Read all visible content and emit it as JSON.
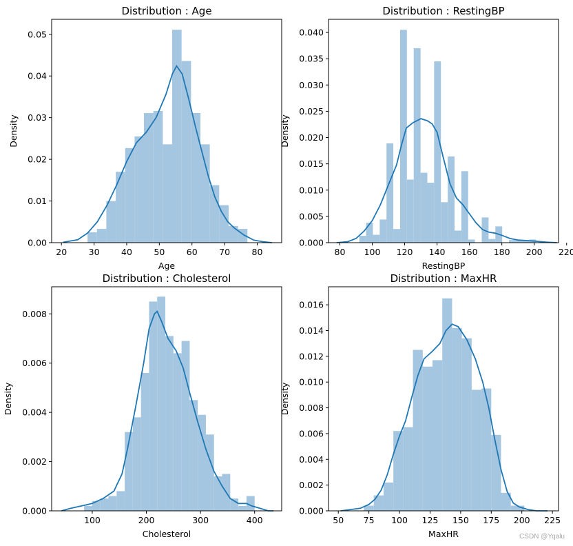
{
  "watermark": "CSDN @Yqalu",
  "colors": {
    "bar": "#a4c6e0",
    "kde": "#1f77b4"
  },
  "chart_data": [
    {
      "type": "bar",
      "title": "Distribution : Age",
      "xlabel": "Age",
      "ylabel": "Density",
      "xlim": [
        17,
        87.5
      ],
      "ylim": [
        0,
        0.0536
      ],
      "xticks": [
        20,
        30,
        40,
        50,
        60,
        70,
        80
      ],
      "yticks": [
        0.0,
        0.01,
        0.02,
        0.03,
        0.04,
        0.05
      ],
      "ytick_labels": [
        "0.00",
        "0.01",
        "0.02",
        "0.03",
        "0.04",
        "0.05"
      ],
      "bins": [
        28,
        30.88,
        33.76,
        36.65,
        39.53,
        42.41,
        45.29,
        48.18,
        51.06,
        53.94,
        56.82,
        59.71,
        62.59,
        65.47,
        68.35,
        71.24,
        74.12,
        77
      ],
      "values": [
        0.0025,
        0.0033,
        0.01,
        0.017,
        0.0227,
        0.0255,
        0.0311,
        0.0316,
        0.0236,
        0.0511,
        0.0436,
        0.0311,
        0.0236,
        0.0138,
        0.009,
        0.004,
        0.0033
      ],
      "kde": {
        "x": [
          20.5,
          25,
          28,
          31,
          34,
          37,
          40,
          43,
          46,
          49,
          52,
          54,
          55.3,
          57,
          59,
          61,
          63,
          65,
          67,
          69,
          71,
          73,
          76,
          79,
          82,
          84.5
        ],
        "y": [
          0.0001,
          0.0007,
          0.0023,
          0.005,
          0.009,
          0.014,
          0.0195,
          0.024,
          0.0265,
          0.03,
          0.0355,
          0.0405,
          0.0424,
          0.0405,
          0.0345,
          0.028,
          0.022,
          0.016,
          0.011,
          0.0075,
          0.005,
          0.0035,
          0.0018,
          0.0006,
          0.0002,
          0.0
        ]
      }
    },
    {
      "type": "bar",
      "title": "Distribution : RestingBP",
      "xlabel": "RestingBP",
      "ylabel": "Density",
      "xlim": [
        73,
        215
      ],
      "ylim": [
        0,
        0.0425
      ],
      "xticks": [
        80,
        100,
        120,
        140,
        160,
        180,
        200,
        220
      ],
      "yticks": [
        0.0,
        0.005,
        0.01,
        0.015,
        0.02,
        0.025,
        0.03,
        0.035,
        0.04
      ],
      "ytick_labels": [
        "0.000",
        "0.005",
        "0.010",
        "0.015",
        "0.020",
        "0.025",
        "0.030",
        "0.035",
        "0.040"
      ],
      "bins": [
        92,
        96.2,
        100.4,
        104.6,
        108.8,
        113,
        117.2,
        121.4,
        125.6,
        129.8,
        134,
        138.2,
        142.4,
        146.6,
        150.8,
        155,
        159.2,
        163.4,
        167.6,
        171.8,
        176,
        180.2,
        184.4,
        188.6,
        192.8,
        197,
        201.2
      ],
      "values": [
        0.0013,
        0.0038,
        0.0015,
        0.0044,
        0.0189,
        0.0026,
        0.0405,
        0.012,
        0.037,
        0.0133,
        0.0114,
        0.0345,
        0.0077,
        0.0164,
        0.0023,
        0.0136,
        0.0006,
        0.0,
        0.0048,
        0.0007,
        0.0031,
        0.0,
        0.0005,
        0.0005,
        0.0005,
        0.0006
      ],
      "kde": {
        "x": [
          78,
          85,
          90,
          95,
          100,
          105,
          110,
          115,
          118,
          121,
          125,
          130,
          134,
          137,
          140,
          144,
          148,
          152,
          156,
          160,
          164,
          168,
          172,
          176,
          180,
          185,
          190,
          195,
          200,
          207,
          214
        ],
        "y": [
          0.0,
          0.0002,
          0.0008,
          0.0022,
          0.0042,
          0.0072,
          0.011,
          0.0148,
          0.0185,
          0.0218,
          0.0228,
          0.0236,
          0.0232,
          0.0226,
          0.021,
          0.016,
          0.0112,
          0.0085,
          0.0072,
          0.0055,
          0.0038,
          0.0025,
          0.002,
          0.0018,
          0.0014,
          0.0008,
          0.0005,
          0.0004,
          0.0003,
          0.0001,
          0.0
        ]
      }
    },
    {
      "type": "bar",
      "title": "Distribution : Cholesterol",
      "xlabel": "Cholesterol",
      "ylabel": "Density",
      "xlim": [
        25,
        450
      ],
      "ylim": [
        0,
        0.0091
      ],
      "xticks": [
        100,
        200,
        300,
        400
      ],
      "yticks": [
        0.0,
        0.002,
        0.004,
        0.006,
        0.008
      ],
      "ytick_labels": [
        "0.000",
        "0.002",
        "0.004",
        "0.006",
        "0.008"
      ],
      "bins": [
        85,
        100,
        115,
        130,
        145,
        160,
        175,
        190,
        205,
        220,
        235,
        250,
        265,
        280,
        295,
        310,
        325,
        340,
        355,
        370,
        385,
        400
      ],
      "values": [
        0.0002,
        0.0004,
        0.0005,
        0.0006,
        0.0008,
        0.0032,
        0.0038,
        0.0056,
        0.0085,
        0.0087,
        0.0071,
        0.0064,
        0.0069,
        0.0045,
        0.0039,
        0.0031,
        0.0014,
        0.0015,
        0.0005,
        0.0002,
        0.0006
      ],
      "kde": {
        "x": [
          43,
          60,
          80,
          100,
          120,
          140,
          155,
          165,
          180,
          195,
          205,
          215,
          220,
          228,
          240,
          255,
          268,
          280,
          295,
          310,
          325,
          340,
          355,
          370,
          385,
          395,
          410,
          425,
          435
        ],
        "y": [
          0.0,
          0.0001,
          0.0002,
          0.0003,
          0.0005,
          0.0008,
          0.0015,
          0.0025,
          0.0042,
          0.006,
          0.0074,
          0.008,
          0.0081,
          0.0077,
          0.007,
          0.0065,
          0.0058,
          0.0048,
          0.0036,
          0.0025,
          0.0016,
          0.001,
          0.0005,
          0.0003,
          0.0003,
          0.0002,
          0.0001,
          0.0,
          0.0
        ]
      }
    },
    {
      "type": "bar",
      "title": "Distribution : MaxHR",
      "xlabel": "MaxHR",
      "ylabel": "Density",
      "xlim": [
        42,
        230
      ],
      "ylim": [
        0,
        0.0174
      ],
      "xticks": [
        50,
        75,
        100,
        125,
        150,
        175,
        200,
        225
      ],
      "yticks": [
        0.0,
        0.002,
        0.004,
        0.006,
        0.008,
        0.01,
        0.012,
        0.014,
        0.016
      ],
      "ytick_labels": [
        "0.000",
        "0.002",
        "0.004",
        "0.006",
        "0.008",
        "0.010",
        "0.012",
        "0.014",
        "0.016"
      ],
      "bins": [
        71,
        79,
        87,
        95,
        103,
        111,
        119,
        127,
        135,
        143,
        151,
        159,
        167,
        175,
        183,
        191,
        199,
        202
      ],
      "values": [
        0.0004,
        0.0012,
        0.0022,
        0.0062,
        0.0065,
        0.0125,
        0.0112,
        0.0117,
        0.0165,
        0.0142,
        0.0134,
        0.0094,
        0.0095,
        0.0059,
        0.0014,
        0.0004,
        0.0004
      ],
      "kde": {
        "x": [
          52,
          60,
          68,
          75,
          80,
          85,
          90,
          95,
          100,
          105,
          110,
          115,
          120,
          127,
          133,
          138,
          143,
          148,
          155,
          162,
          168,
          173,
          178,
          183,
          188,
          193,
          198,
          205,
          212,
          221
        ],
        "y": [
          0.0,
          0.0001,
          0.0002,
          0.0005,
          0.0009,
          0.0016,
          0.0028,
          0.0044,
          0.0058,
          0.007,
          0.0088,
          0.0105,
          0.0118,
          0.0124,
          0.013,
          0.014,
          0.0145,
          0.0143,
          0.0133,
          0.0118,
          0.01,
          0.008,
          0.0055,
          0.0032,
          0.0015,
          0.0006,
          0.0003,
          0.0001,
          0.0,
          0.0
        ]
      }
    }
  ]
}
